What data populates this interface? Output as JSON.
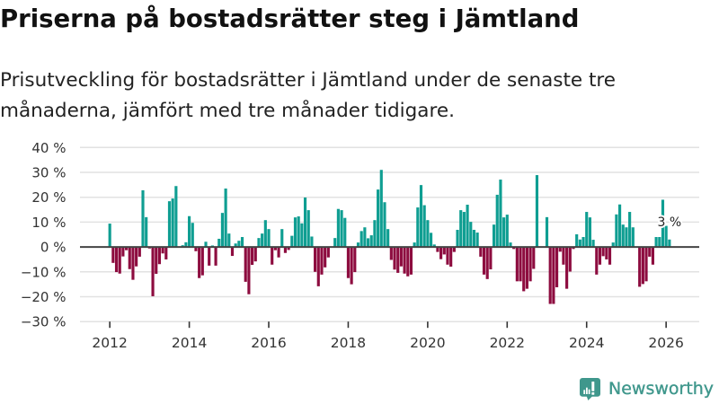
{
  "header": {
    "title": "Priserna på bostadsrätter steg i Jämtland",
    "subtitle": "Prisutveckling för bostadsrätter i Jämtland under de senaste tre månaderna, jämfört med tre månader tidigare."
  },
  "chart_data": {
    "type": "bar",
    "title": "Priserna på bostadsrätter steg i Jämtland",
    "subtitle": "Prisutveckling för bostadsrätter i Jämtland under de senaste tre månaderna, jämfört med tre månader tidigare.",
    "xlabel": "",
    "ylabel": "",
    "frequency": "monthly",
    "x": [
      "2012-01",
      "2012-02",
      "2012-03",
      "2012-04",
      "2012-05",
      "2012-06",
      "2012-07",
      "2012-08",
      "2012-09",
      "2012-10",
      "2012-11",
      "2012-12",
      "2013-01",
      "2013-02",
      "2013-03",
      "2013-04",
      "2013-05",
      "2013-06",
      "2013-07",
      "2013-08",
      "2013-09",
      "2013-10",
      "2013-11",
      "2013-12",
      "2014-01",
      "2014-02",
      "2014-03",
      "2014-04",
      "2014-05",
      "2014-06",
      "2014-07",
      "2014-08",
      "2014-09",
      "2014-10",
      "2014-11",
      "2014-12",
      "2015-01",
      "2015-02",
      "2015-03",
      "2015-04",
      "2015-05",
      "2015-06",
      "2015-07",
      "2015-08",
      "2015-09",
      "2015-10",
      "2015-11",
      "2015-12",
      "2016-01",
      "2016-02",
      "2016-03",
      "2016-04",
      "2016-05",
      "2016-06",
      "2016-07",
      "2016-08",
      "2016-09",
      "2016-10",
      "2016-11",
      "2016-12",
      "2017-01",
      "2017-02",
      "2017-03",
      "2017-04",
      "2017-05",
      "2017-06",
      "2017-07",
      "2017-08",
      "2017-09",
      "2017-10",
      "2017-11",
      "2017-12",
      "2018-01",
      "2018-02",
      "2018-03",
      "2018-04",
      "2018-05",
      "2018-06",
      "2018-07",
      "2018-08",
      "2018-09",
      "2018-10",
      "2018-11",
      "2018-12",
      "2019-01",
      "2019-02",
      "2019-03",
      "2019-04",
      "2019-05",
      "2019-06",
      "2019-07",
      "2019-08",
      "2019-09",
      "2019-10",
      "2019-11",
      "2019-12",
      "2020-01",
      "2020-02",
      "2020-03",
      "2020-04",
      "2020-05",
      "2020-06",
      "2020-07",
      "2020-08",
      "2020-09",
      "2020-10",
      "2020-11",
      "2020-12",
      "2021-01",
      "2021-02",
      "2021-03",
      "2021-04",
      "2021-05",
      "2021-06",
      "2021-07",
      "2021-08",
      "2021-09",
      "2021-10",
      "2021-11",
      "2021-12",
      "2022-01",
      "2022-02",
      "2022-03",
      "2022-04",
      "2022-05",
      "2022-06",
      "2022-07",
      "2022-08",
      "2022-09",
      "2022-10",
      "2022-11",
      "2022-12",
      "2023-01",
      "2023-02",
      "2023-03",
      "2023-04",
      "2023-05",
      "2023-06",
      "2023-07",
      "2023-08",
      "2023-09",
      "2023-10",
      "2023-11",
      "2023-12",
      "2024-01",
      "2024-02",
      "2024-03",
      "2024-04",
      "2024-05",
      "2024-06",
      "2024-07",
      "2024-08",
      "2024-09",
      "2024-10",
      "2024-11",
      "2024-12",
      "2025-01",
      "2025-02",
      "2025-03",
      "2025-04",
      "2025-05",
      "2025-06",
      "2025-07",
      "2025-08",
      "2025-09",
      "2025-10",
      "2025-11",
      "2025-12",
      "2026-01",
      "2026-02"
    ],
    "values": [
      9.4,
      -6.4,
      -10.1,
      -10.7,
      -3.8,
      -1.3,
      -8.9,
      -13.2,
      -7.8,
      -3.9,
      22.8,
      12.0,
      -0.6,
      -19.8,
      -10.8,
      -6.9,
      -2.6,
      -5.0,
      18.4,
      19.5,
      24.5,
      0.0,
      0.7,
      1.9,
      12.4,
      9.7,
      -1.7,
      -12.5,
      -11.4,
      2.1,
      -7.5,
      0.6,
      -7.5,
      3.3,
      13.7,
      23.5,
      5.4,
      -3.6,
      1.4,
      2.5,
      4.0,
      -14.0,
      -19.0,
      -7.2,
      -5.8,
      3.6,
      5.4,
      10.8,
      7.2,
      -7.1,
      -1.3,
      -4.2,
      7.2,
      -2.4,
      -1.2,
      4.5,
      11.9,
      12.3,
      9.5,
      19.9,
      14.8,
      4.2,
      -10.0,
      -15.8,
      -11.1,
      -8.2,
      -4.2,
      0.0,
      3.6,
      15.3,
      14.8,
      11.7,
      -12.5,
      -15.0,
      -10.1,
      1.8,
      6.4,
      7.9,
      3.5,
      4.7,
      10.8,
      23.1,
      31.0,
      18.0,
      7.2,
      -5.2,
      -9.1,
      -10.4,
      -7.8,
      -10.7,
      -11.8,
      -11.1,
      1.8,
      15.9,
      24.9,
      16.8,
      10.8,
      5.7,
      1.0,
      -2.0,
      -4.9,
      -3.0,
      -7.1,
      -7.9,
      -2.0,
      6.9,
      14.8,
      14.1,
      17.0,
      10.1,
      6.9,
      5.8,
      -3.9,
      -11.1,
      -12.9,
      -9.0,
      9.0,
      21.0,
      27.1,
      11.9,
      13.0,
      1.8,
      -0.8,
      -13.8,
      -13.8,
      -17.8,
      -16.8,
      -13.8,
      -8.8,
      28.9,
      0.0,
      0.0,
      12.0,
      -22.9,
      -22.9,
      -16.2,
      -1.9,
      -7.1,
      -16.8,
      -9.9,
      -0.8,
      5.1,
      3.0,
      4.0,
      14.1,
      11.9,
      2.9,
      -11.1,
      -7.1,
      -3.7,
      -5.0,
      -7.1,
      1.8,
      13.1,
      17.1,
      9.0,
      7.9,
      14.1,
      7.9,
      0.0,
      -16.0,
      -14.9,
      -13.8,
      -3.9,
      -7.1,
      4.0,
      4.0,
      19.0,
      8.5,
      3.0
    ],
    "unit": "%",
    "xlim": [
      "2011-04",
      "2026-11"
    ],
    "ylim": [
      -30,
      40
    ],
    "yticks": [
      40,
      30,
      20,
      10,
      0,
      -10,
      -20,
      -30
    ],
    "ytick_labels": [
      "40 %",
      "30 %",
      "20 %",
      "10 %",
      "0 %",
      "−10 %",
      "−20 %",
      "−30 %"
    ],
    "xticks": [
      "2012-01",
      "2014-01",
      "2016-01",
      "2018-01",
      "2020-01",
      "2022-01",
      "2024-01",
      "2026-01"
    ],
    "xtick_labels": [
      "2012",
      "2014",
      "2016",
      "2018",
      "2020",
      "2022",
      "2024",
      "2026"
    ],
    "grid": true,
    "legend": "none",
    "colors": {
      "positive": "#0f9e92",
      "negative": "#8d0c3f",
      "zero_line": "#444444",
      "grid": "#e2e2e2",
      "tick": "#333333"
    },
    "annotations": [
      {
        "x": "2026-02",
        "value": 3.0,
        "label": "3 %"
      }
    ]
  },
  "branding": {
    "logo_text": "Newsworthy",
    "logo_icon": "newsworthy-chart-bubble-icon",
    "logo_color": "#3f978c"
  }
}
